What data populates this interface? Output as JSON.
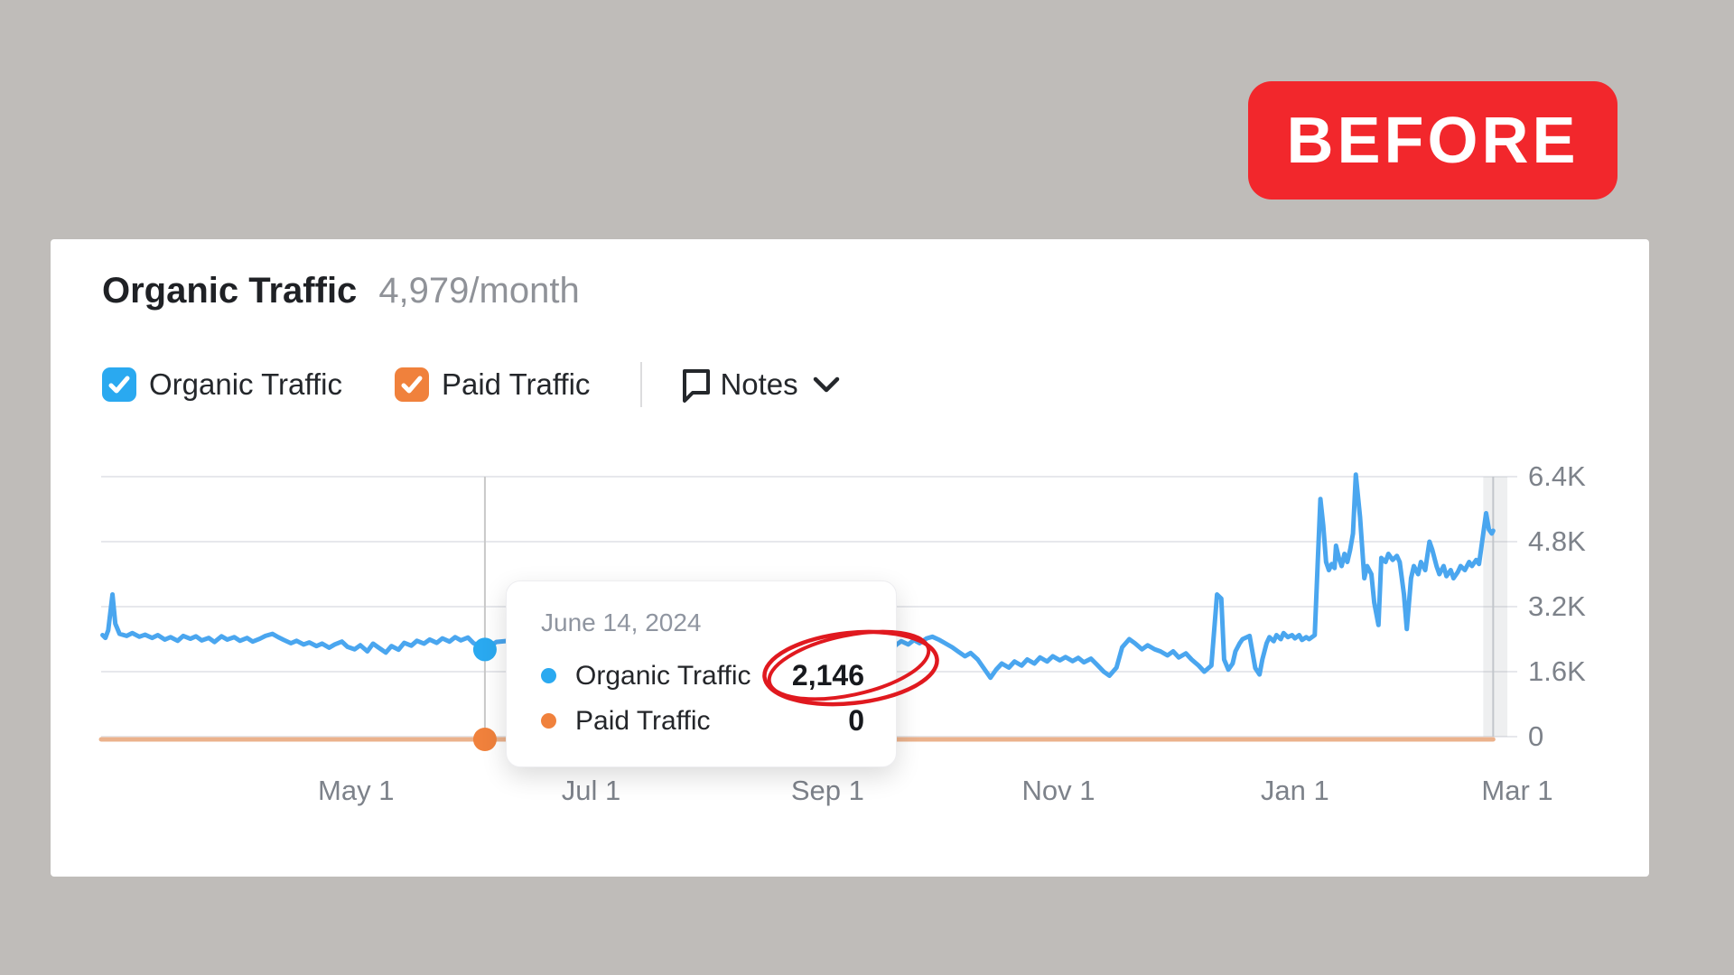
{
  "badge": {
    "label": "BEFORE",
    "bg_color": "#f2272c",
    "text_color": "#ffffff"
  },
  "panel": {
    "title": "Organic Traffic",
    "subtitle": "4,979/month",
    "legend": [
      {
        "label": "Organic Traffic",
        "checked": true,
        "color": "#2aa9f0"
      },
      {
        "label": "Paid Traffic",
        "checked": true,
        "color": "#f0813c"
      }
    ],
    "notes": {
      "label": "Notes"
    }
  },
  "tooltip": {
    "date": "June 14, 2024",
    "rows": [
      {
        "label": "Organic Traffic",
        "value": "2,146",
        "color": "#2aa9f0",
        "circled": true
      },
      {
        "label": "Paid Traffic",
        "value": "0",
        "color": "#f0813c",
        "circled": false
      }
    ],
    "annotation": "hand-drawn red circle around 2,146"
  },
  "chart_data": {
    "type": "line",
    "title": "Organic Traffic",
    "ylim": [
      0,
      6400
    ],
    "grid": "horizontal",
    "legend_position": "above-chart",
    "y_ticks": [
      {
        "label": "0",
        "value": 0
      },
      {
        "label": "1.6K",
        "value": 1600
      },
      {
        "label": "3.2K",
        "value": 3200
      },
      {
        "label": "4.8K",
        "value": 4800
      },
      {
        "label": "6.4K",
        "value": 6400
      }
    ],
    "x_ticks": [
      {
        "label": "May 1",
        "t": 0.18
      },
      {
        "label": "Jul 1",
        "t": 0.346
      },
      {
        "label": "Sep 1",
        "t": 0.513
      },
      {
        "label": "Nov 1",
        "t": 0.676
      },
      {
        "label": "Jan 1",
        "t": 0.843
      },
      {
        "label": "Mar 1",
        "t": 1.0
      }
    ],
    "hover": {
      "t": 0.271,
      "date": "June 14, 2024",
      "organic": 2146,
      "paid": 0
    },
    "end_band": {
      "t0": 0.976,
      "t1": 0.993,
      "edge_t": 0.983
    },
    "series": [
      {
        "name": "Organic Traffic",
        "color": "#4aa6ef",
        "points": [
          [
            0.001,
            2500
          ],
          [
            0.003,
            2430
          ],
          [
            0.005,
            2620
          ],
          [
            0.008,
            3500
          ],
          [
            0.01,
            2780
          ],
          [
            0.013,
            2530
          ],
          [
            0.018,
            2480
          ],
          [
            0.022,
            2550
          ],
          [
            0.027,
            2460
          ],
          [
            0.031,
            2510
          ],
          [
            0.036,
            2430
          ],
          [
            0.04,
            2500
          ],
          [
            0.045,
            2390
          ],
          [
            0.049,
            2450
          ],
          [
            0.054,
            2360
          ],
          [
            0.058,
            2480
          ],
          [
            0.063,
            2410
          ],
          [
            0.067,
            2470
          ],
          [
            0.071,
            2370
          ],
          [
            0.076,
            2430
          ],
          [
            0.08,
            2330
          ],
          [
            0.085,
            2470
          ],
          [
            0.089,
            2390
          ],
          [
            0.094,
            2450
          ],
          [
            0.098,
            2360
          ],
          [
            0.103,
            2430
          ],
          [
            0.107,
            2340
          ],
          [
            0.112,
            2410
          ],
          [
            0.116,
            2480
          ],
          [
            0.121,
            2530
          ],
          [
            0.125,
            2450
          ],
          [
            0.129,
            2380
          ],
          [
            0.134,
            2300
          ],
          [
            0.138,
            2360
          ],
          [
            0.143,
            2270
          ],
          [
            0.147,
            2320
          ],
          [
            0.152,
            2230
          ],
          [
            0.156,
            2290
          ],
          [
            0.161,
            2190
          ],
          [
            0.165,
            2270
          ],
          [
            0.17,
            2340
          ],
          [
            0.174,
            2210
          ],
          [
            0.179,
            2150
          ],
          [
            0.183,
            2250
          ],
          [
            0.188,
            2100
          ],
          [
            0.192,
            2290
          ],
          [
            0.196,
            2190
          ],
          [
            0.201,
            2070
          ],
          [
            0.205,
            2230
          ],
          [
            0.21,
            2140
          ],
          [
            0.214,
            2310
          ],
          [
            0.219,
            2240
          ],
          [
            0.223,
            2360
          ],
          [
            0.228,
            2290
          ],
          [
            0.232,
            2390
          ],
          [
            0.237,
            2310
          ],
          [
            0.241,
            2420
          ],
          [
            0.246,
            2340
          ],
          [
            0.25,
            2450
          ],
          [
            0.254,
            2370
          ],
          [
            0.259,
            2440
          ],
          [
            0.263,
            2300
          ],
          [
            0.267,
            2240
          ],
          [
            0.271,
            2146
          ],
          [
            0.279,
            2330
          ],
          [
            0.288,
            2360
          ],
          [
            0.297,
            2440
          ],
          [
            0.306,
            2390
          ],
          [
            0.315,
            2410
          ],
          [
            0.324,
            2270
          ],
          [
            0.333,
            2290
          ],
          [
            0.342,
            2320
          ],
          [
            0.351,
            2370
          ],
          [
            0.36,
            2410
          ],
          [
            0.369,
            2430
          ],
          [
            0.378,
            2450
          ],
          [
            0.386,
            2420
          ],
          [
            0.395,
            2460
          ],
          [
            0.404,
            2490
          ],
          [
            0.413,
            2510
          ],
          [
            0.422,
            2540
          ],
          [
            0.431,
            2410
          ],
          [
            0.44,
            2430
          ],
          [
            0.444,
            2550
          ],
          [
            0.449,
            2600
          ],
          [
            0.453,
            2520
          ],
          [
            0.458,
            2640
          ],
          [
            0.462,
            2560
          ],
          [
            0.467,
            2620
          ],
          [
            0.471,
            2540
          ],
          [
            0.476,
            2600
          ],
          [
            0.48,
            2500
          ],
          [
            0.485,
            2570
          ],
          [
            0.489,
            2480
          ],
          [
            0.494,
            2300
          ],
          [
            0.498,
            2420
          ],
          [
            0.503,
            2340
          ],
          [
            0.507,
            2460
          ],
          [
            0.512,
            2280
          ],
          [
            0.516,
            2180
          ],
          [
            0.52,
            2080
          ],
          [
            0.525,
            1980
          ],
          [
            0.529,
            2060
          ],
          [
            0.534,
            1940
          ],
          [
            0.538,
            2020
          ],
          [
            0.543,
            1880
          ],
          [
            0.547,
            1960
          ],
          [
            0.552,
            1840
          ],
          [
            0.556,
            1920
          ],
          [
            0.561,
            2250
          ],
          [
            0.565,
            2350
          ],
          [
            0.57,
            2270
          ],
          [
            0.574,
            2380
          ],
          [
            0.578,
            2300
          ],
          [
            0.583,
            2420
          ],
          [
            0.587,
            2460
          ],
          [
            0.592,
            2380
          ],
          [
            0.596,
            2300
          ],
          [
            0.601,
            2200
          ],
          [
            0.605,
            2100
          ],
          [
            0.61,
            1980
          ],
          [
            0.614,
            2060
          ],
          [
            0.619,
            1900
          ],
          [
            0.623,
            1700
          ],
          [
            0.628,
            1450
          ],
          [
            0.632,
            1650
          ],
          [
            0.636,
            1800
          ],
          [
            0.641,
            1700
          ],
          [
            0.645,
            1850
          ],
          [
            0.65,
            1750
          ],
          [
            0.654,
            1900
          ],
          [
            0.659,
            1800
          ],
          [
            0.663,
            1950
          ],
          [
            0.668,
            1850
          ],
          [
            0.672,
            1980
          ],
          [
            0.677,
            1880
          ],
          [
            0.681,
            1960
          ],
          [
            0.686,
            1860
          ],
          [
            0.69,
            1940
          ],
          [
            0.694,
            1830
          ],
          [
            0.699,
            1920
          ],
          [
            0.703,
            1780
          ],
          [
            0.708,
            1600
          ],
          [
            0.712,
            1500
          ],
          [
            0.717,
            1700
          ],
          [
            0.721,
            2200
          ],
          [
            0.726,
            2400
          ],
          [
            0.73,
            2300
          ],
          [
            0.735,
            2150
          ],
          [
            0.739,
            2250
          ],
          [
            0.744,
            2150
          ],
          [
            0.748,
            2100
          ],
          [
            0.753,
            2000
          ],
          [
            0.757,
            2100
          ],
          [
            0.761,
            1950
          ],
          [
            0.766,
            2050
          ],
          [
            0.77,
            1900
          ],
          [
            0.775,
            1750
          ],
          [
            0.779,
            1600
          ],
          [
            0.784,
            1750
          ],
          [
            0.788,
            3500
          ],
          [
            0.791,
            3400
          ],
          [
            0.793,
            1900
          ],
          [
            0.796,
            1650
          ],
          [
            0.799,
            1800
          ],
          [
            0.801,
            2100
          ],
          [
            0.804,
            2300
          ],
          [
            0.806,
            2400
          ],
          [
            0.811,
            2480
          ],
          [
            0.815,
            1690
          ],
          [
            0.818,
            1530
          ],
          [
            0.82,
            1900
          ],
          [
            0.823,
            2300
          ],
          [
            0.825,
            2450
          ],
          [
            0.828,
            2350
          ],
          [
            0.83,
            2500
          ],
          [
            0.833,
            2400
          ],
          [
            0.835,
            2550
          ],
          [
            0.838,
            2450
          ],
          [
            0.841,
            2500
          ],
          [
            0.843,
            2420
          ],
          [
            0.846,
            2500
          ],
          [
            0.848,
            2380
          ],
          [
            0.851,
            2450
          ],
          [
            0.853,
            2400
          ],
          [
            0.855,
            2450
          ],
          [
            0.857,
            2500
          ],
          [
            0.859,
            4200
          ],
          [
            0.861,
            5850
          ],
          [
            0.863,
            5200
          ],
          [
            0.865,
            4300
          ],
          [
            0.867,
            4100
          ],
          [
            0.869,
            4250
          ],
          [
            0.871,
            4150
          ],
          [
            0.872,
            4700
          ],
          [
            0.874,
            4400
          ],
          [
            0.876,
            4200
          ],
          [
            0.878,
            4500
          ],
          [
            0.88,
            4300
          ],
          [
            0.882,
            4600
          ],
          [
            0.884,
            5000
          ],
          [
            0.886,
            6450
          ],
          [
            0.889,
            5400
          ],
          [
            0.892,
            3900
          ],
          [
            0.894,
            4200
          ],
          [
            0.897,
            4000
          ],
          [
            0.899,
            3300
          ],
          [
            0.902,
            2750
          ],
          [
            0.904,
            4400
          ],
          [
            0.907,
            4300
          ],
          [
            0.909,
            4500
          ],
          [
            0.912,
            4350
          ],
          [
            0.915,
            4450
          ],
          [
            0.917,
            4300
          ],
          [
            0.92,
            3500
          ],
          [
            0.922,
            2650
          ],
          [
            0.925,
            3900
          ],
          [
            0.927,
            4200
          ],
          [
            0.93,
            4000
          ],
          [
            0.932,
            4300
          ],
          [
            0.935,
            4100
          ],
          [
            0.938,
            4800
          ],
          [
            0.94,
            4600
          ],
          [
            0.943,
            4200
          ],
          [
            0.945,
            4000
          ],
          [
            0.948,
            4200
          ],
          [
            0.95,
            3950
          ],
          [
            0.953,
            4100
          ],
          [
            0.955,
            3900
          ],
          [
            0.958,
            4050
          ],
          [
            0.96,
            4200
          ],
          [
            0.963,
            4100
          ],
          [
            0.966,
            4300
          ],
          [
            0.968,
            4200
          ],
          [
            0.971,
            4350
          ],
          [
            0.973,
            4250
          ],
          [
            0.976,
            5000
          ],
          [
            0.978,
            5500
          ],
          [
            0.98,
            5100
          ],
          [
            0.982,
            5000
          ],
          [
            0.983,
            5070
          ]
        ]
      },
      {
        "name": "Paid Traffic",
        "color": "#ebb28c",
        "points": [
          [
            0.0,
            0
          ],
          [
            0.983,
            0
          ]
        ]
      }
    ]
  },
  "colors": {
    "background": "#bfbcb9",
    "card": "#ffffff",
    "organic_blue": "#2aa9f0",
    "paid_orange": "#f0813c",
    "badge_red": "#f2272c",
    "annotation_red": "#e0191f",
    "gridline": "#e7e8ec",
    "crosshair": "#c9c9c9"
  }
}
